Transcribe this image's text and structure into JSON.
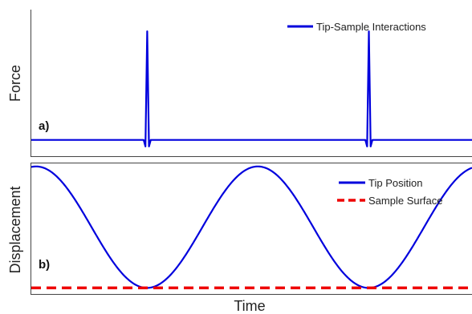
{
  "chart_data": [
    {
      "panel": "a)",
      "type": "line",
      "xlabel": "",
      "ylabel": "Force",
      "grid": false,
      "legend_placement": "top-right",
      "series": [
        {
          "name": "Tip-Sample Interactions",
          "color": "#0000dd",
          "style": "solid",
          "baseline": 0,
          "peak_height": 1,
          "peak_times": [
            0.263,
            0.766
          ],
          "dip_depth": -0.06,
          "x": [
            0,
            0.255,
            0.259,
            0.263,
            0.267,
            0.271,
            0.276,
            0.72,
            0.758,
            0.762,
            0.766,
            0.77,
            0.774,
            0.779,
            1
          ],
          "y": [
            0,
            0,
            -0.06,
            1,
            -0.06,
            0,
            0,
            0,
            0,
            -0.06,
            1,
            -0.06,
            0,
            0,
            0
          ]
        }
      ],
      "ylim": [
        -0.15,
        1.2
      ],
      "xlim": [
        0,
        1
      ]
    },
    {
      "panel": "b)",
      "type": "line",
      "xlabel": "Time",
      "ylabel": "Displacement",
      "grid": false,
      "legend_placement": "top-right",
      "series": [
        {
          "name": "Tip Position",
          "color": "#0000dd",
          "style": "solid",
          "function": "cosine",
          "period": 0.503,
          "amplitude": 1,
          "maxima_times": [
            0.011,
            0.514,
            1.017
          ],
          "minima_times": [
            0.263,
            0.766
          ]
        },
        {
          "name": "Sample Surface",
          "color": "#ee0000",
          "style": "dashed",
          "y": -1
        }
      ],
      "ylim": [
        -1.1,
        1.05
      ],
      "xlim": [
        0,
        1
      ]
    }
  ]
}
